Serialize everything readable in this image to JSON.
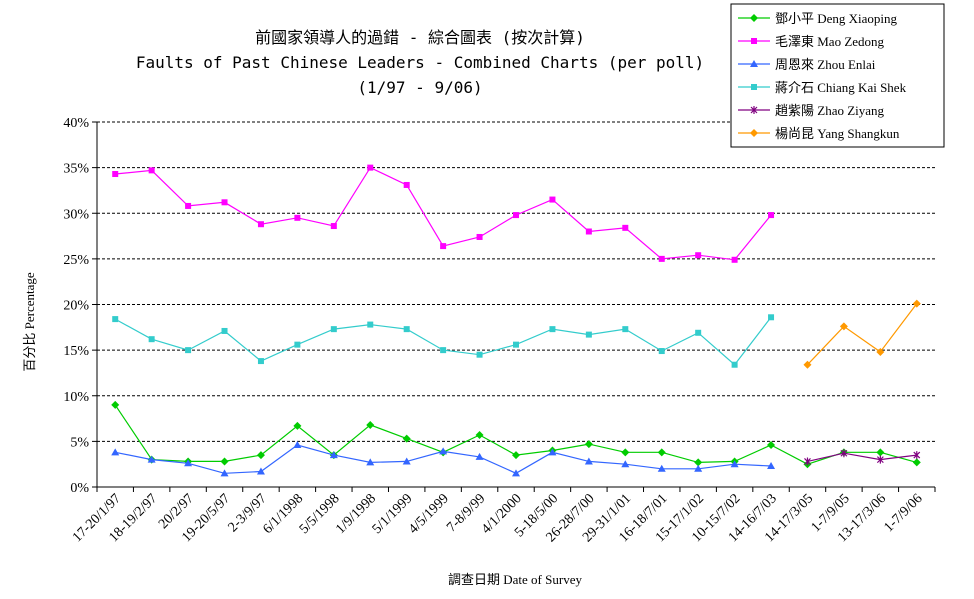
{
  "chart_data": {
    "type": "line",
    "title": "前國家領導人的過錯 - 綜合圖表 (按次計算)",
    "subtitle": "Faults of Past Chinese Leaders - Combined Charts (per poll)",
    "subtitle2": "(1/97 - 9/06)",
    "xlabel": "調查日期 Date of Survey",
    "ylabel": "百分比 Percentage",
    "ylim": [
      0,
      40
    ],
    "yticks": [
      "0%",
      "5%",
      "10%",
      "15%",
      "20%",
      "25%",
      "30%",
      "35%",
      "40%"
    ],
    "grid": "horizontal dashed",
    "legend_position": "top-right",
    "categories": [
      "17-20/1/97",
      "18-19/2/97",
      "20/2/97",
      "19-20/5/97",
      "2-3/9/97",
      "6/1/1998",
      "5/5/1998",
      "1/9/1998",
      "5/1/1999",
      "4/5/1999",
      "7-8/9/99",
      "4/1/2000",
      "5-18/5/00",
      "26-28/7/00",
      "29-31/1/01",
      "16-18/7/01",
      "15-17/1/02",
      "10-15/7/02",
      "14-16/7/03",
      "14-17/3/05",
      "1-7/9/05",
      "13-17/3/06",
      "1-7/9/06"
    ],
    "series": [
      {
        "name": "鄧小平 Deng Xiaoping",
        "color": "#00cc00",
        "marker": "diamond",
        "values": [
          9.0,
          3.0,
          2.8,
          2.8,
          3.5,
          6.7,
          3.5,
          6.8,
          5.3,
          3.8,
          5.7,
          3.5,
          4.0,
          4.7,
          3.8,
          3.8,
          2.7,
          2.8,
          4.6,
          2.5,
          3.8,
          3.8,
          2.7
        ]
      },
      {
        "name": "毛澤東 Mao Zedong",
        "color": "#ff00ff",
        "marker": "square",
        "values": [
          34.3,
          34.7,
          30.8,
          31.2,
          28.8,
          29.5,
          28.6,
          35.0,
          33.1,
          26.4,
          27.4,
          29.8,
          31.5,
          28.0,
          28.4,
          25.0,
          25.4,
          24.9,
          29.8,
          null,
          null,
          null,
          null
        ]
      },
      {
        "name": "周恩來 Zhou Enlai",
        "color": "#3366ff",
        "marker": "triangle",
        "values": [
          3.8,
          3.0,
          2.6,
          1.5,
          1.7,
          4.6,
          3.5,
          2.7,
          2.8,
          3.9,
          3.3,
          1.5,
          3.8,
          2.8,
          2.5,
          2.0,
          2.0,
          2.5,
          2.3,
          null,
          null,
          null,
          null
        ]
      },
      {
        "name": "蔣介石 Chiang Kai Shek",
        "color": "#33cccc",
        "marker": "square",
        "values": [
          18.4,
          16.2,
          15.0,
          17.1,
          13.8,
          15.6,
          17.3,
          17.8,
          17.3,
          15.0,
          14.5,
          15.6,
          17.3,
          16.7,
          17.3,
          14.9,
          16.9,
          13.4,
          18.6,
          null,
          null,
          null,
          null
        ]
      },
      {
        "name": "趙紫陽 Zhao Ziyang",
        "color": "#800080",
        "marker": "star",
        "values": [
          null,
          null,
          null,
          null,
          null,
          null,
          null,
          null,
          null,
          null,
          null,
          null,
          null,
          null,
          null,
          null,
          null,
          null,
          null,
          2.8,
          3.7,
          3.0,
          3.5
        ]
      },
      {
        "name": "楊尚昆 Yang Shangkun",
        "color": "#ff9900",
        "marker": "diamond",
        "values": [
          null,
          null,
          null,
          null,
          null,
          null,
          null,
          null,
          null,
          null,
          null,
          null,
          null,
          null,
          null,
          null,
          null,
          null,
          null,
          13.4,
          17.6,
          14.8,
          20.1
        ]
      }
    ]
  }
}
